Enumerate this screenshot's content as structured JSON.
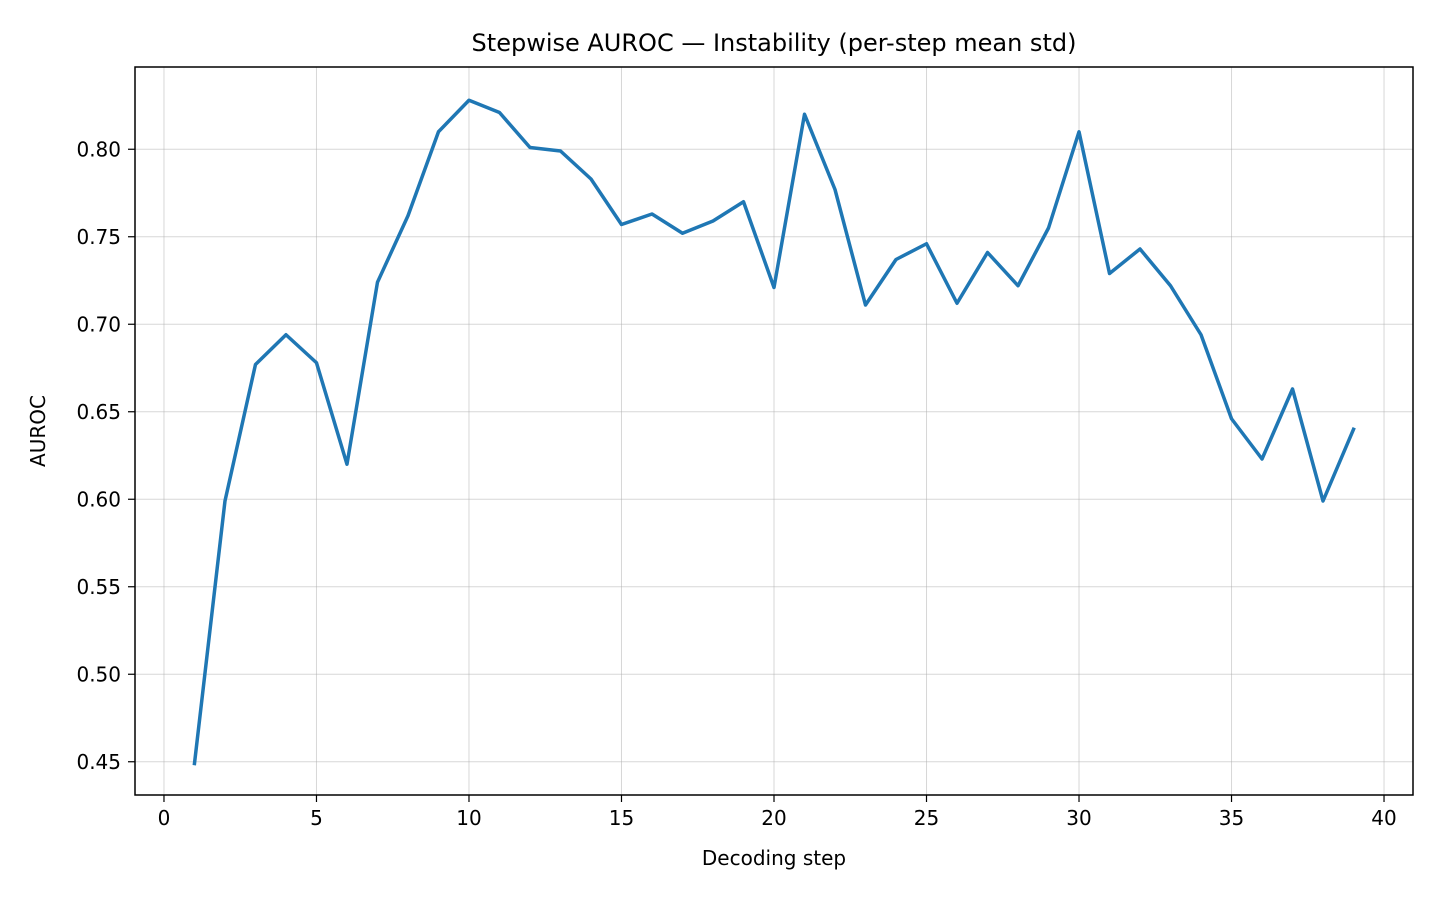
{
  "chart_data": {
    "type": "line",
    "title": "Stepwise AUROC — Instability (per-step mean std)",
    "xlabel": "Decoding step",
    "ylabel": "AUROC",
    "xlim": [
      -0.95,
      40.95
    ],
    "ylim": [
      0.431,
      0.847
    ],
    "xticks": [
      0,
      5,
      10,
      15,
      20,
      25,
      30,
      35,
      40
    ],
    "xtick_labels": [
      "0",
      "5",
      "10",
      "15",
      "20",
      "25",
      "30",
      "35",
      "40"
    ],
    "yticks": [
      0.45,
      0.5,
      0.55,
      0.6,
      0.65,
      0.7,
      0.75,
      0.8
    ],
    "ytick_labels": [
      "0.45",
      "0.50",
      "0.55",
      "0.60",
      "0.65",
      "0.70",
      "0.75",
      "0.80"
    ],
    "grid": true,
    "legend": false,
    "series": [
      {
        "color": "#1f77b4",
        "x": [
          1,
          2,
          3,
          4,
          5,
          6,
          7,
          8,
          9,
          10,
          11,
          12,
          13,
          14,
          15,
          16,
          17,
          18,
          19,
          20,
          21,
          22,
          23,
          24,
          25,
          26,
          27,
          28,
          29,
          30,
          31,
          32,
          33,
          34,
          35,
          36,
          37,
          38,
          39
        ],
        "y": [
          0.449,
          0.599,
          0.677,
          0.694,
          0.678,
          0.62,
          0.724,
          0.762,
          0.81,
          0.828,
          0.821,
          0.801,
          0.799,
          0.783,
          0.757,
          0.763,
          0.752,
          0.759,
          0.77,
          0.721,
          0.82,
          0.777,
          0.711,
          0.737,
          0.746,
          0.712,
          0.741,
          0.722,
          0.755,
          0.81,
          0.729,
          0.743,
          0.722,
          0.694,
          0.646,
          0.623,
          0.663,
          0.599,
          0.64
        ]
      }
    ]
  }
}
